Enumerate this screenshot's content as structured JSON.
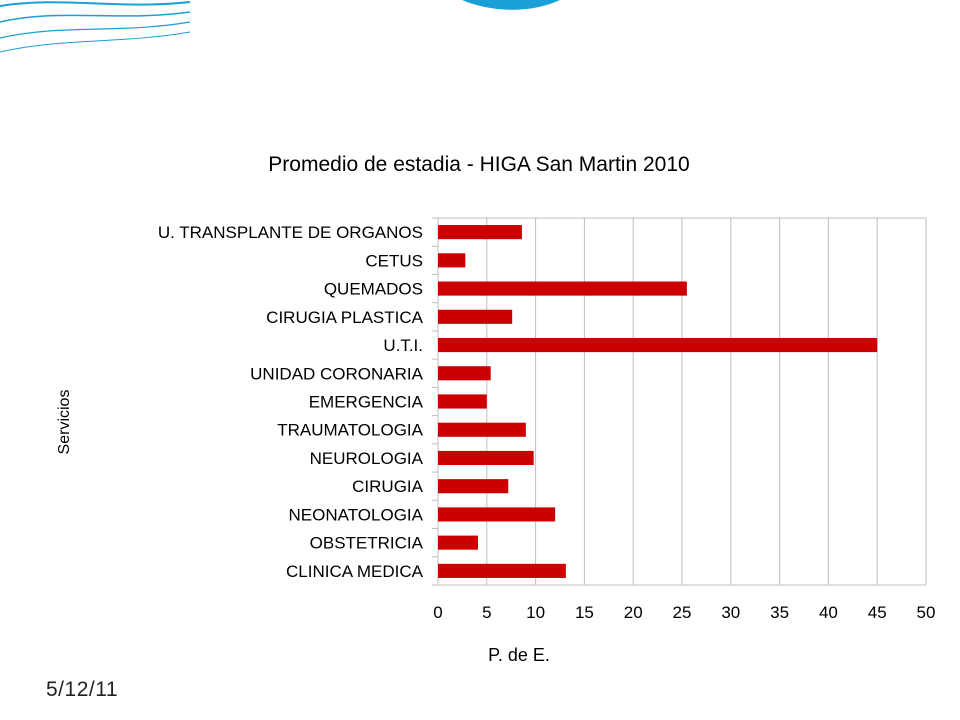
{
  "slide": {
    "footer_date": "5/12/11"
  },
  "colors": {
    "bar": "#cc0000",
    "grid": "#bfbfbf",
    "wave": "#1a9fd6"
  },
  "chart_data": {
    "type": "bar",
    "orientation": "horizontal",
    "title": "Promedio de estadia - HIGA San Martin 2010",
    "xlabel": "P. de E.",
    "ylabel": "Servicios",
    "xlim": [
      0,
      50
    ],
    "xticks": [
      0,
      5,
      10,
      15,
      20,
      25,
      30,
      35,
      40,
      45,
      50
    ],
    "grid": true,
    "legend": "none",
    "categories": [
      "U. TRANSPLANTE DE ORGANOS",
      "CETUS",
      "QUEMADOS",
      "CIRUGIA PLASTICA",
      "U.T.I.",
      "UNIDAD CORONARIA",
      "EMERGENCIA",
      "TRAUMATOLOGIA",
      "NEUROLOGIA",
      "CIRUGIA",
      "NEONATOLOGIA",
      "OBSTETRICIA",
      "CLINICA MEDICA"
    ],
    "values": [
      8.6,
      2.8,
      25.5,
      7.6,
      45.0,
      5.4,
      5.0,
      9.0,
      9.8,
      7.2,
      12.0,
      4.1,
      13.1
    ]
  }
}
